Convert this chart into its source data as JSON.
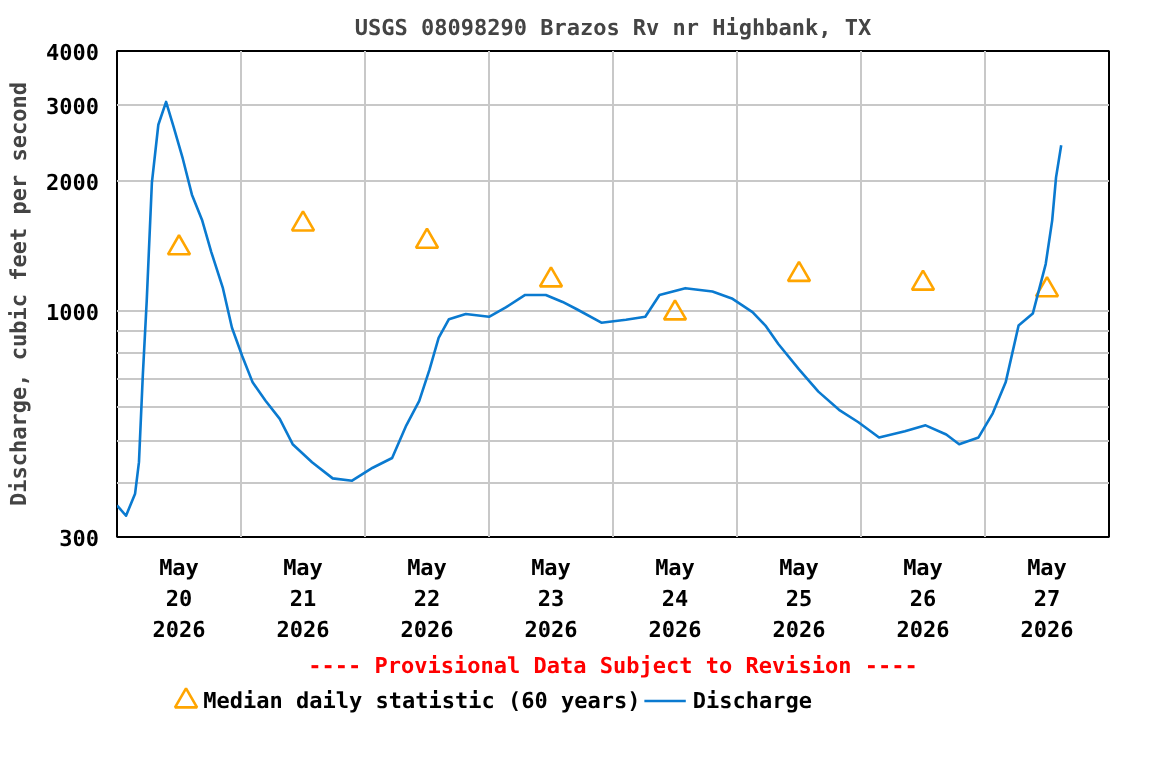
{
  "chart_data": {
    "type": "line",
    "title": "USGS 08098290 Brazos Rv nr Highbank, TX",
    "ylabel": "Discharge, cubic feet per second",
    "annotations": [
      "---- Provisional Data Subject to Revision ----"
    ],
    "log": "y",
    "grid": true,
    "legend": "bottom",
    "xlim": [
      "2026-05-20T00:00",
      "2026-05-28T00:00"
    ],
    "xticks": [
      {
        "value": "2026-05-20T12:00",
        "label": "May\n20\n2026"
      },
      {
        "value": "2026-05-21T12:00",
        "label": "May\n21\n2026"
      },
      {
        "value": "2026-05-22T12:00",
        "label": "May\n22\n2026"
      },
      {
        "value": "2026-05-23T12:00",
        "label": "May\n23\n2026"
      },
      {
        "value": "2026-05-24T12:00",
        "label": "May\n24\n2026"
      },
      {
        "value": "2026-05-25T12:00",
        "label": "May\n25\n2026"
      },
      {
        "value": "2026-05-26T12:00",
        "label": "May\n26\n2026"
      },
      {
        "value": "2026-05-27T12:00",
        "label": "May\n27\n2026"
      },
      {
        "value": "2026-05-21T00:00",
        "label": null
      },
      {
        "value": "2026-05-22T00:00",
        "label": null
      },
      {
        "value": "2026-05-23T00:00",
        "label": null
      },
      {
        "value": "2026-05-24T00:00",
        "label": null
      },
      {
        "value": "2026-05-25T00:00",
        "label": null
      },
      {
        "value": "2026-05-26T00:00",
        "label": null
      },
      {
        "value": "2026-05-27T00:00",
        "label": null
      }
    ],
    "ylim": [
      300,
      4000
    ],
    "yticks": [
      300,
      {
        "value": 400,
        "label": null
      },
      {
        "value": 500,
        "label": null
      },
      {
        "value": 600,
        "label": null
      },
      {
        "value": 700,
        "label": null
      },
      {
        "value": 800,
        "label": null
      },
      {
        "value": 900,
        "label": null
      },
      1000,
      2000,
      3000,
      4000
    ],
    "series": [
      {
        "name": "Median daily statistic (60 years)",
        "type": "scatter",
        "marker": "triangle",
        "color": "#ffa500",
        "x": [
          "2026-05-20T12:00",
          "2026-05-21T12:00",
          "2026-05-22T12:00",
          "2026-05-23T12:00",
          "2026-05-24T12:00",
          "2026-05-25T12:00",
          "2026-05-26T12:00",
          "2026-05-27T12:00"
        ],
        "values": [
          1400,
          1590,
          1450,
          1180,
          990,
          1215,
          1160,
          1120
        ]
      },
      {
        "name": "Discharge",
        "line_style": "solid",
        "color": "#0a7ad0",
        "x": [
          "2026-05-20T00:00",
          "2026-05-20T01:45",
          "2026-05-20T03:30",
          "2026-05-20T04:15",
          "2026-05-20T05:00",
          "2026-05-20T05:45",
          "2026-05-20T06:45",
          "2026-05-20T08:00",
          "2026-05-20T09:30",
          "2026-05-20T11:00",
          "2026-05-20T12:45",
          "2026-05-20T14:30",
          "2026-05-20T16:30",
          "2026-05-20T18:15",
          "2026-05-20T20:30",
          "2026-05-20T22:15",
          "2026-05-21T00:15",
          "2026-05-21T02:15",
          "2026-05-21T04:45",
          "2026-05-21T07:30",
          "2026-05-21T10:00",
          "2026-05-21T13:45",
          "2026-05-21T17:45",
          "2026-05-21T21:30",
          "2026-05-22T01:30",
          "2026-05-22T05:15",
          "2026-05-22T08:00",
          "2026-05-22T10:30",
          "2026-05-22T12:30",
          "2026-05-22T14:15",
          "2026-05-22T16:15",
          "2026-05-22T19:30",
          "2026-05-23T00:00",
          "2026-05-23T03:15",
          "2026-05-23T07:00",
          "2026-05-23T11:00",
          "2026-05-23T14:15",
          "2026-05-23T17:00",
          "2026-05-23T21:45",
          "2026-05-24T02:30",
          "2026-05-24T06:15",
          "2026-05-24T09:00",
          "2026-05-24T14:00",
          "2026-05-24T19:15",
          "2026-05-24T23:00",
          "2026-05-25T03:00",
          "2026-05-25T05:30",
          "2026-05-25T08:00",
          "2026-05-25T12:00",
          "2026-05-25T15:45",
          "2026-05-25T19:45",
          "2026-05-25T23:30",
          "2026-05-26T03:30",
          "2026-05-26T08:30",
          "2026-05-26T12:30",
          "2026-05-26T16:30",
          "2026-05-26T19:00",
          "2026-05-26T22:45",
          "2026-05-27T01:30",
          "2026-05-27T04:00",
          "2026-05-27T06:30",
          "2026-05-27T09:15",
          "2026-05-27T11:45",
          "2026-05-27T13:00",
          "2026-05-27T13:45",
          "2026-05-27T14:45"
        ],
        "values": [
          355,
          336,
          378,
          447,
          712,
          1055,
          1980,
          2700,
          3050,
          2660,
          2250,
          1860,
          1620,
          1370,
          1130,
          915,
          786,
          684,
          620,
          563,
          492,
          447,
          410,
          405,
          434,
          457,
          544,
          620,
          733,
          867,
          958,
          985,
          970,
          1020,
          1090,
          1090,
          1050,
          1010,
          940,
          955,
          970,
          1090,
          1130,
          1110,
          1070,
          995,
          926,
          839,
          733,
          651,
          591,
          553,
          510,
          527,
          544,
          518,
          492,
          510,
          580,
          684,
          926,
          987,
          1285,
          1620,
          2040,
          2420
        ]
      }
    ]
  }
}
